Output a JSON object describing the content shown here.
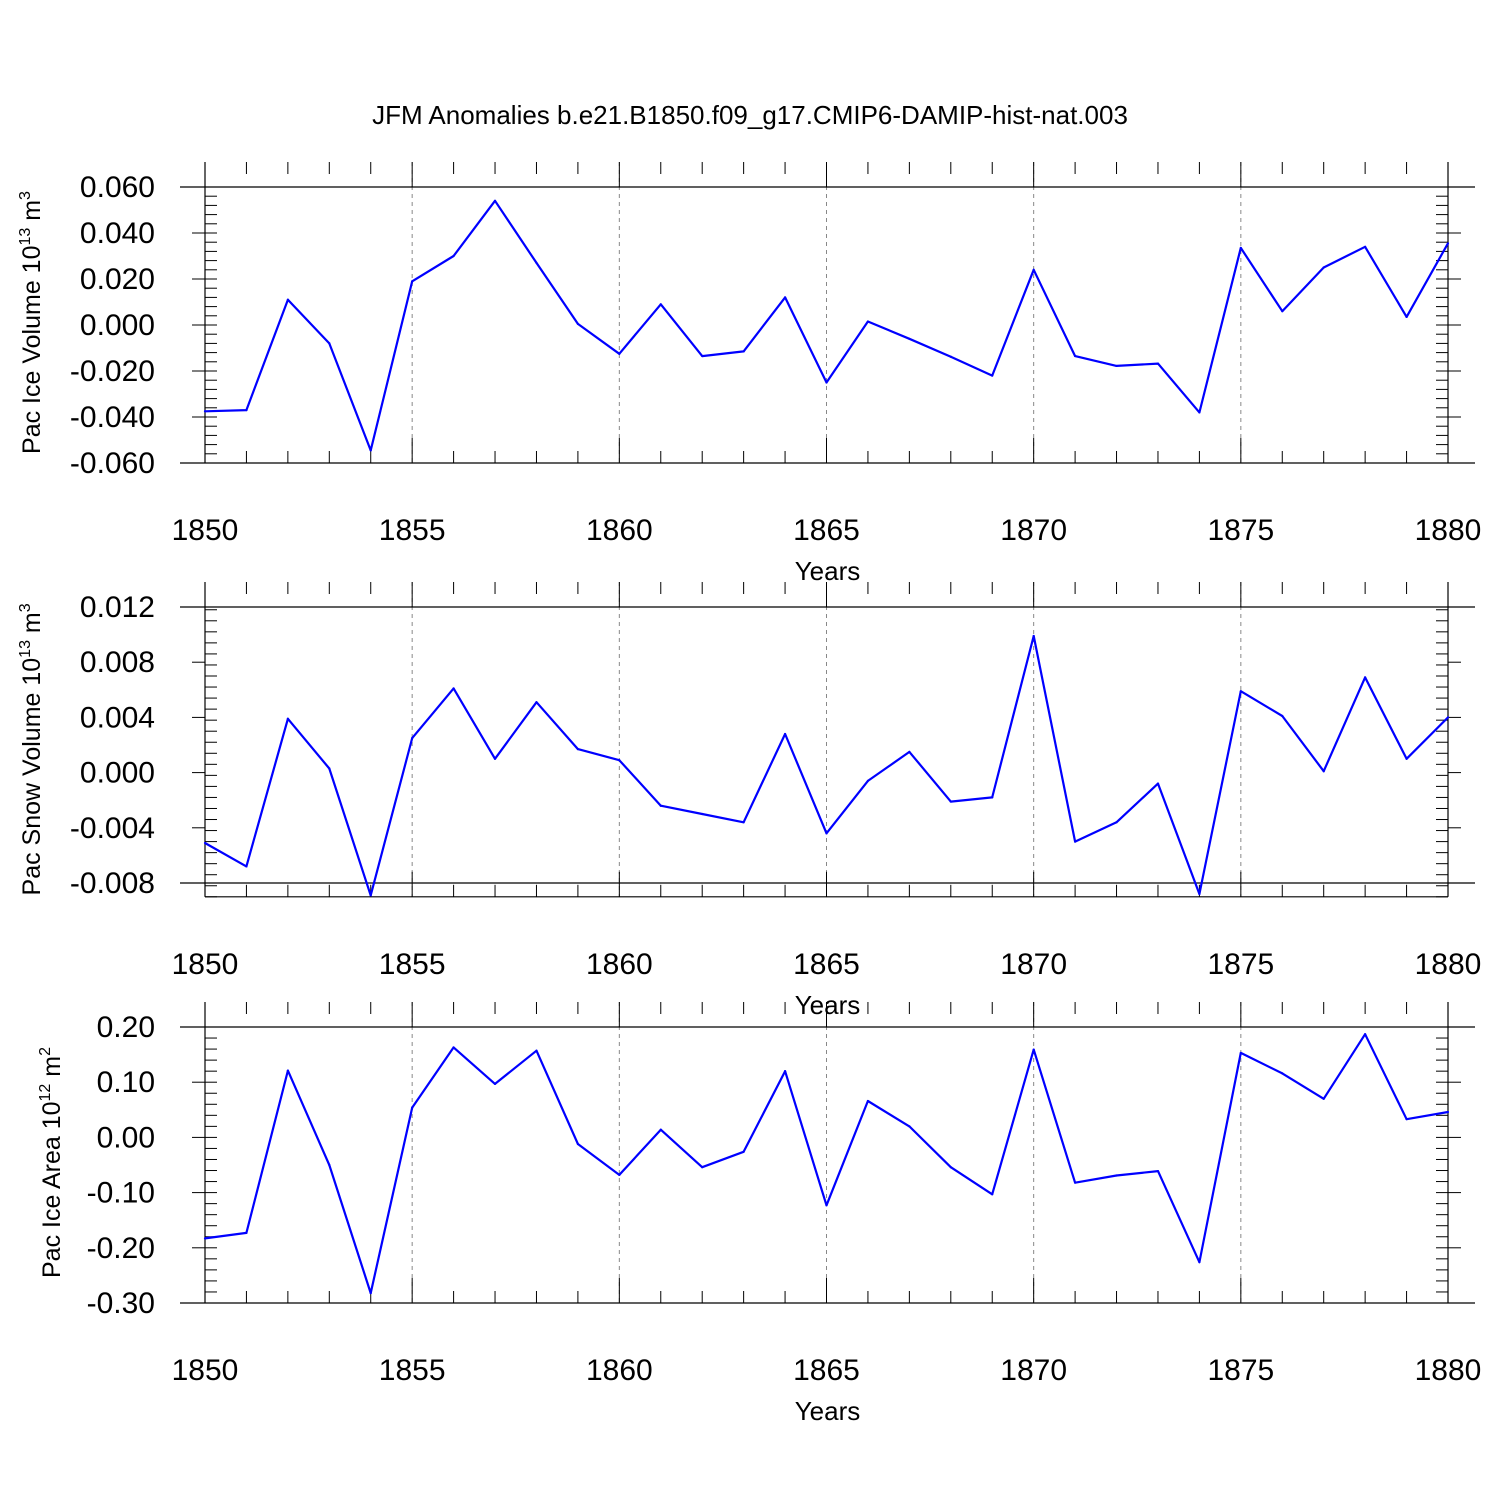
{
  "title": "JFM Anomalies b.e21.B1850.f09_g17.CMIP6-DAMIP-hist-nat.003",
  "colors": {
    "series": "#0000ff",
    "grid": "#888888"
  },
  "chart_data": [
    {
      "type": "line",
      "ylabel_main": "Pac Ice Volume 10",
      "ylabel_exp": "13",
      "ylabel_unit": " m",
      "ylabel_unit_exp": "3",
      "xlabel": "Years",
      "xlim": [
        1850,
        1880
      ],
      "ylim": [
        -0.06,
        0.06
      ],
      "yticks": [
        -0.06,
        -0.04,
        -0.02,
        0.0,
        0.02,
        0.04,
        0.06
      ],
      "ytick_labels": [
        "-0.060",
        "-0.040",
        "-0.020",
        "0.000",
        "0.020",
        "0.040",
        "0.060"
      ],
      "xticks": [
        1850,
        1855,
        1860,
        1865,
        1870,
        1875,
        1880
      ],
      "xtick_labels": [
        "1850",
        "1855",
        "1860",
        "1865",
        "1870",
        "1875",
        "1880"
      ],
      "x": [
        1850,
        1851,
        1852,
        1853,
        1854,
        1855,
        1856,
        1857,
        1858,
        1859,
        1860,
        1861,
        1862,
        1863,
        1864,
        1865,
        1866,
        1867,
        1868,
        1869,
        1870,
        1871,
        1872,
        1873,
        1874,
        1875,
        1876,
        1877,
        1878,
        1879,
        1880
      ],
      "values": [
        -0.0375,
        -0.037,
        0.011,
        -0.008,
        -0.0545,
        0.019,
        0.03,
        0.054,
        0.027,
        0.0005,
        -0.0125,
        0.009,
        -0.0135,
        -0.0115,
        0.012,
        -0.025,
        0.0015,
        -0.006,
        -0.0138,
        -0.022,
        0.024,
        -0.0135,
        -0.0178,
        -0.0168,
        -0.038,
        0.0335,
        0.006,
        0.025,
        0.034,
        0.0035,
        0.0355
      ]
    },
    {
      "type": "line",
      "ylabel_main": "Pac Snow Volume 10",
      "ylabel_exp": "13",
      "ylabel_unit": " m",
      "ylabel_unit_exp": "3",
      "xlabel": "Years",
      "xlim": [
        1850,
        1880
      ],
      "ylim": [
        -0.009,
        0.0135
      ],
      "yticks": [
        -0.008,
        -0.004,
        0.0,
        0.004,
        0.008,
        0.012
      ],
      "ytick_labels": [
        "-0.008",
        "-0.004",
        "0.000",
        "0.004",
        "0.008",
        "0.012"
      ],
      "xticks": [
        1850,
        1855,
        1860,
        1865,
        1870,
        1875,
        1880
      ],
      "xtick_labels": [
        "1850",
        "1855",
        "1860",
        "1865",
        "1870",
        "1875",
        "1880"
      ],
      "x": [
        1850,
        1851,
        1852,
        1853,
        1854,
        1855,
        1856,
        1857,
        1858,
        1859,
        1860,
        1861,
        1862,
        1863,
        1864,
        1865,
        1866,
        1867,
        1868,
        1869,
        1870,
        1871,
        1872,
        1873,
        1874,
        1875,
        1876,
        1877,
        1878,
        1879,
        1880
      ],
      "values": [
        -0.0051,
        -0.0068,
        0.0039,
        0.0003,
        -0.0089,
        0.0025,
        0.0061,
        0.001,
        0.0051,
        0.0017,
        0.0009,
        -0.0024,
        -0.003,
        -0.0036,
        0.0028,
        -0.0044,
        -0.0006,
        0.0015,
        -0.0021,
        -0.0018,
        0.0099,
        -0.005,
        -0.0036,
        -0.0008,
        -0.0088,
        0.0059,
        0.0041,
        0.0001,
        0.0069,
        0.001,
        0.004
      ]
    },
    {
      "type": "line",
      "ylabel_main": "Pac Ice Area 10",
      "ylabel_exp": "12",
      "ylabel_unit": " m",
      "ylabel_unit_exp": "2",
      "xlabel": "Years",
      "xlim": [
        1850,
        1880
      ],
      "ylim": [
        -0.3,
        0.2
      ],
      "yticks": [
        -0.3,
        -0.2,
        -0.1,
        0.0,
        0.1,
        0.2
      ],
      "ytick_labels": [
        "-0.30",
        "-0.20",
        "-0.10",
        "0.00",
        "0.10",
        "0.20"
      ],
      "xticks": [
        1850,
        1855,
        1860,
        1865,
        1870,
        1875,
        1880
      ],
      "xtick_labels": [
        "1850",
        "1855",
        "1860",
        "1865",
        "1870",
        "1875",
        "1880"
      ],
      "x": [
        1850,
        1851,
        1852,
        1853,
        1854,
        1855,
        1856,
        1857,
        1858,
        1859,
        1860,
        1861,
        1862,
        1863,
        1864,
        1865,
        1866,
        1867,
        1868,
        1869,
        1870,
        1871,
        1872,
        1873,
        1874,
        1875,
        1876,
        1877,
        1878,
        1879,
        1880
      ],
      "values": [
        -0.183,
        -0.173,
        0.121,
        -0.05,
        -0.282,
        0.054,
        0.163,
        0.097,
        0.157,
        -0.012,
        -0.068,
        0.014,
        -0.054,
        -0.026,
        0.12,
        -0.123,
        0.066,
        0.02,
        -0.054,
        -0.103,
        0.159,
        -0.082,
        -0.069,
        -0.061,
        -0.226,
        0.153,
        0.116,
        0.07,
        0.187,
        0.033,
        0.046
      ]
    }
  ]
}
